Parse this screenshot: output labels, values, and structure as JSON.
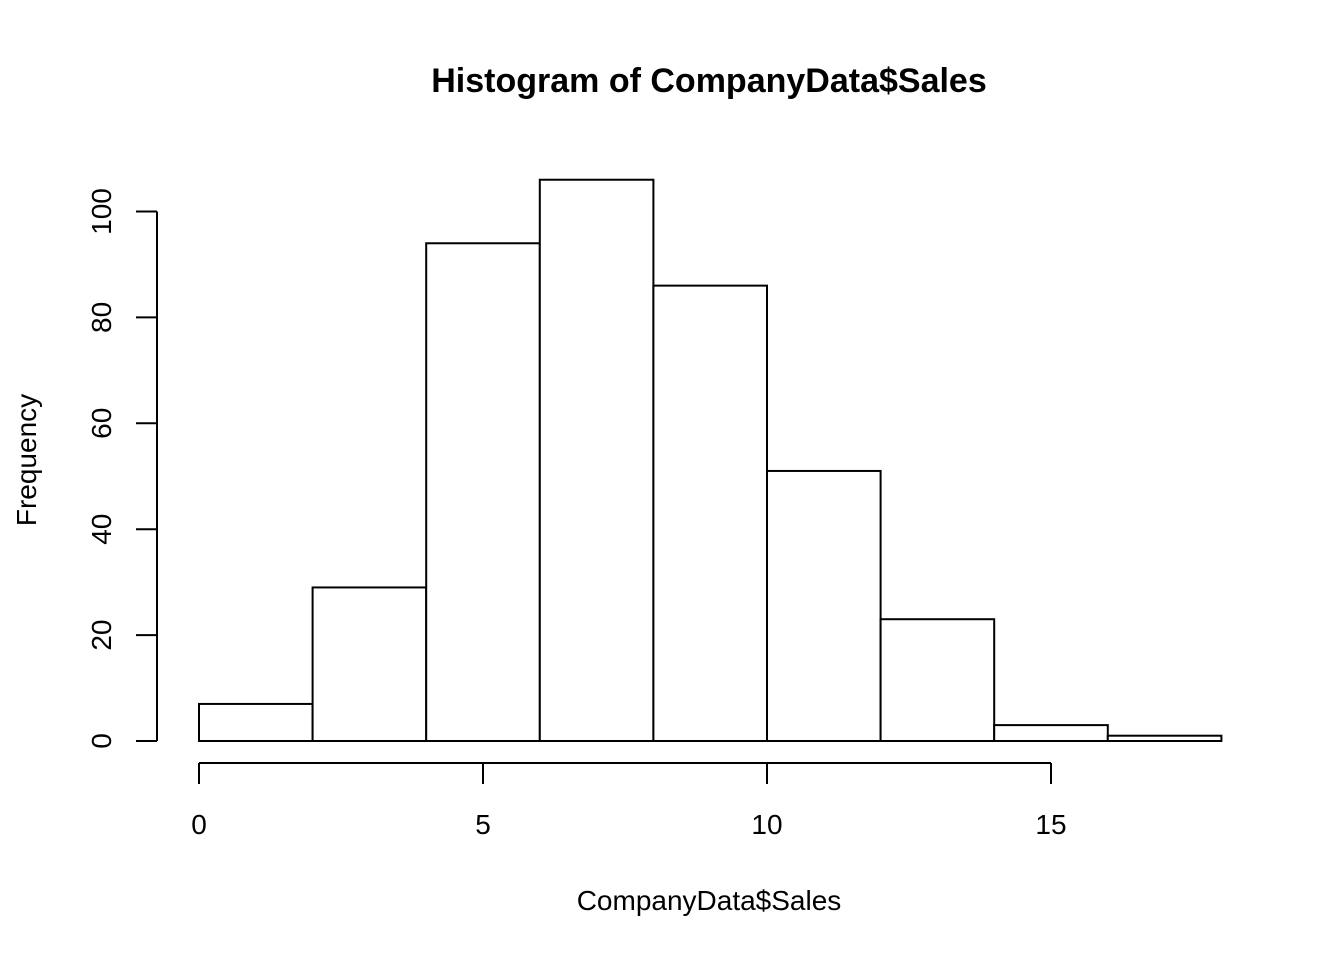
{
  "chart_data": {
    "type": "bar",
    "subtype": "histogram",
    "title": "Histogram of CompanyData$Sales",
    "xlabel": "CompanyData$Sales",
    "ylabel": "Frequency",
    "bins": [
      {
        "start": 0,
        "end": 2,
        "count": 7
      },
      {
        "start": 2,
        "end": 4,
        "count": 29
      },
      {
        "start": 4,
        "end": 6,
        "count": 94
      },
      {
        "start": 6,
        "end": 8,
        "count": 106
      },
      {
        "start": 8,
        "end": 10,
        "count": 86
      },
      {
        "start": 10,
        "end": 12,
        "count": 51
      },
      {
        "start": 12,
        "end": 14,
        "count": 23
      },
      {
        "start": 14,
        "end": 16,
        "count": 3
      },
      {
        "start": 16,
        "end": 18,
        "count": 1
      }
    ],
    "x_ticks": [
      0,
      5,
      10,
      15
    ],
    "y_ticks": [
      0,
      20,
      40,
      60,
      80,
      100
    ],
    "xlim": [
      0,
      18
    ],
    "ylim": [
      0,
      106
    ],
    "grid": false,
    "bar_fill": "#ffffff",
    "bar_stroke": "#000000"
  }
}
